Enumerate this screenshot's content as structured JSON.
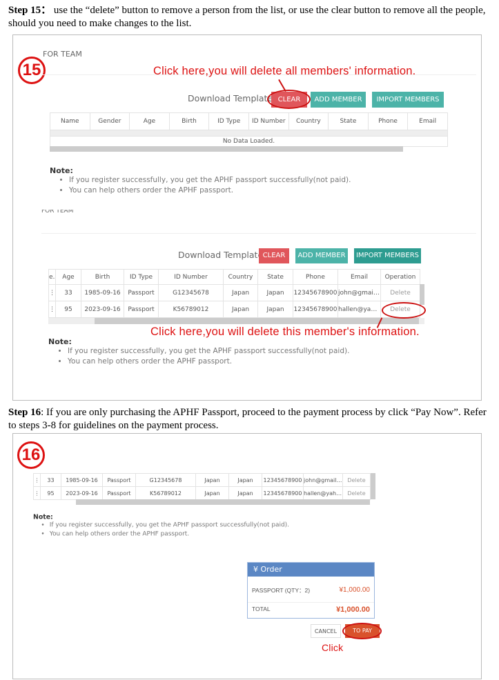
{
  "step15": {
    "label": "Step 15",
    "text": "use the “delete” button to remove a person from the list, or use the clear button to remove all the people, should you need to make changes to the list."
  },
  "step16": {
    "label": "Step 16",
    "text": ": If you are only purchasing the APHF Passport, proceed to the payment process by click “Pay Now”. Refer to steps 3-8 for guidelines on the payment process."
  },
  "badges": {
    "b15": "15",
    "b16": "16"
  },
  "section_title": "FOR TEAM",
  "toolbar": {
    "download": "Download Template",
    "clear": "CLEAR",
    "add": "ADD MEMBER",
    "import": "IMPORT MEMBERS"
  },
  "colors": {
    "clear": "#e0565b",
    "add": "#4cb3a8",
    "import": "#2d9c90",
    "annotation": "#dd1111",
    "order_header": "#5b87c4"
  },
  "annotations": {
    "clear_all": "Click here,you will delete all members' information.",
    "delete_one": "Click here,you will delete this member's information.",
    "click": "Click"
  },
  "table1": {
    "headers": [
      "Name",
      "Gender",
      "Age",
      "Birth",
      "ID Type",
      "ID Number",
      "Country",
      "State",
      "Phone",
      "Email"
    ],
    "empty": "No Data Loaded."
  },
  "table2": {
    "headers": [
      "er",
      "Age",
      "Birth",
      "ID Type",
      "ID Number",
      "Country",
      "State",
      "Phone",
      "Email",
      "Operation"
    ],
    "rows": [
      [
        "⋮",
        "33",
        "1985-09-16",
        "Passport",
        "G12345678",
        "Japan",
        "Japan",
        "12345678900",
        "john@gmail.c...",
        "Delete"
      ],
      [
        "⋮",
        "95",
        "2023-09-16",
        "Passport",
        "K56789012",
        "Japan",
        "Japan",
        "12345678900",
        "hallen@yahoo...",
        "Delete"
      ]
    ]
  },
  "note": {
    "title": "Note:",
    "items": [
      "If you register successfully, you get the APHF passport successfully(not paid).",
      "You can help others order the APHF passport."
    ]
  },
  "order": {
    "title": "Order",
    "icon": "yen-icon",
    "line_label": "PASSPORT (QTY：2)",
    "line_value": "¥1,000.00",
    "total_label": "TOTAL",
    "total_value": "¥1,000.00",
    "cancel": "CANCEL",
    "pay": "TO PAY"
  }
}
